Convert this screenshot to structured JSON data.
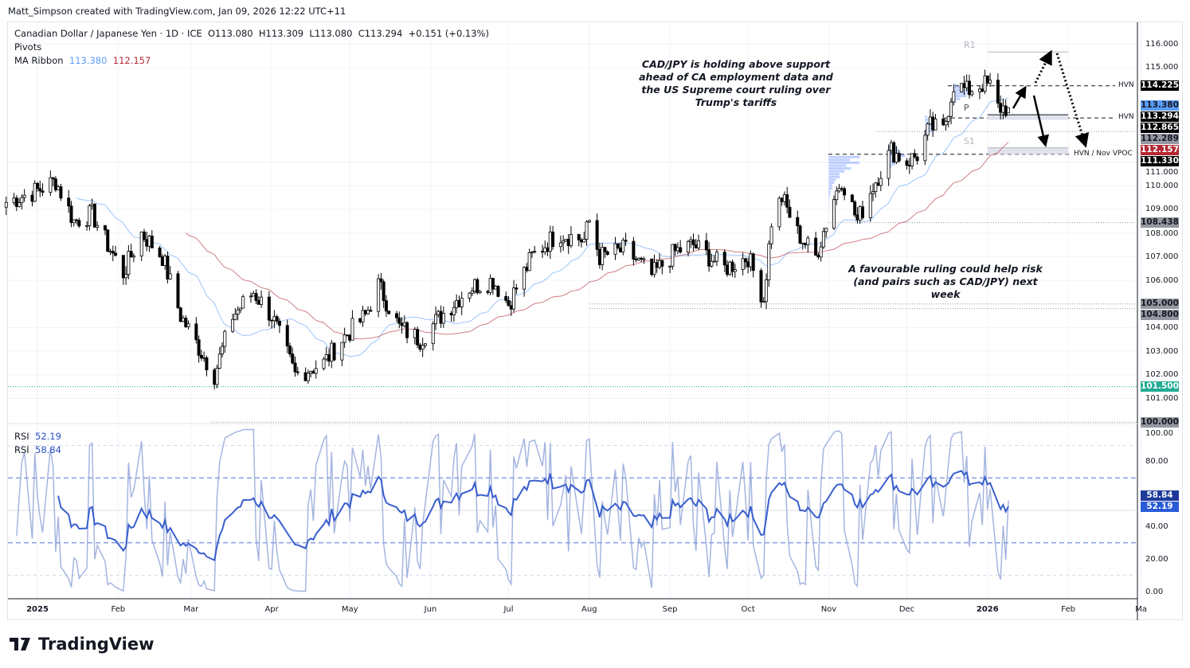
{
  "credit": "Matt_Simpson created with TradingView.com, Jan 09, 2026 12:22 UTC+11",
  "legend": {
    "symbol": "Canadian Dollar / Japanese Yen · 1D · ICE",
    "open": "O113.080",
    "high": "H113.309",
    "low": "L113.080",
    "close": "C113.294",
    "change": "+0.151 (+0.13%)",
    "pivots": "Pivots",
    "ma_label": "MA Ribbon",
    "ma_fast": "113.380",
    "ma_slow": "112.157"
  },
  "rsi_legend": [
    {
      "label": "RSI",
      "value": "52.19"
    },
    {
      "label": "RSI",
      "value": "58.84"
    }
  ],
  "annotations": {
    "top": "CAD/JPY is holding above support ahead of CA employment data and the US Supreme court ruling over Trump's tariffs",
    "bottom": "A favourable ruling could help risk (and pairs such as CAD/JPY) next week"
  },
  "levels": [
    {
      "label": "HVN",
      "value": 114.225
    },
    {
      "label": "HVN",
      "value": 112.865
    },
    {
      "label": "HVN / Nov VPOC",
      "value": 111.33
    }
  ],
  "pivots": [
    {
      "label": "R1",
      "value": 115.65
    },
    {
      "label": "P",
      "value": 113.0
    },
    {
      "label": "S1",
      "value": 111.6
    }
  ],
  "price_labels": [
    {
      "text": "114.225",
      "value": 114.225,
      "bg": "#000000",
      "fg": "#ffffff"
    },
    {
      "text": "113.380",
      "value": 113.38,
      "bg": "#5b9cf6",
      "fg": "#131722"
    },
    {
      "text": "113.294",
      "value": 113.294,
      "bg": "#000000",
      "fg": "#ffffff"
    },
    {
      "text": "112.865",
      "value": 112.865,
      "bg": "#000000",
      "fg": "#ffffff"
    },
    {
      "text": "112.289",
      "value": 112.289,
      "bg": "#9598a1",
      "fg": "#131722"
    },
    {
      "text": "112.157",
      "value": 112.157,
      "bg": "#b22833",
      "fg": "#ffffff"
    },
    {
      "text": "111.330",
      "value": 111.33,
      "bg": "#000000",
      "fg": "#ffffff"
    },
    {
      "text": "108.438",
      "value": 108.438,
      "bg": "#9598a1",
      "fg": "#131722"
    },
    {
      "text": "105.000",
      "value": 105.0,
      "bg": "#9598a1",
      "fg": "#131722"
    },
    {
      "text": "104.800",
      "value": 104.8,
      "bg": "#9598a1",
      "fg": "#131722"
    },
    {
      "text": "101.500",
      "value": 101.5,
      "bg": "#22ab94",
      "fg": "#ffffff"
    },
    {
      "text": "100.000",
      "value": 100.0,
      "bg": "#9598a1",
      "fg": "#131722"
    },
    {
      "text": "58.84",
      "rsi": 58.84,
      "bg": "#1e3a9a",
      "fg": "#ffffff"
    },
    {
      "text": "52.19",
      "rsi": 52.19,
      "bg": "#2a5bd7",
      "fg": "#ffffff"
    }
  ],
  "logo": "TradingView",
  "chart_data": {
    "type": "candlestick",
    "price_ticks": [
      "116.000",
      "115.000",
      "111.000",
      "110.000",
      "109.000",
      "108.000",
      "107.000",
      "106.000",
      "104.000",
      "103.000",
      "102.000",
      "101.000"
    ],
    "rsi_ticks": [
      "100.00",
      "80.00",
      "40.00",
      "20.00",
      "0.00"
    ],
    "x_ticks": [
      {
        "label": "2025",
        "date": "2025-01-01"
      },
      {
        "label": "Feb",
        "date": "2025-02-01"
      },
      {
        "label": "Mar",
        "date": "2025-03-01"
      },
      {
        "label": "Apr",
        "date": "2025-04-01"
      },
      {
        "label": "May",
        "date": "2025-05-01"
      },
      {
        "label": "Jun",
        "date": "2025-06-01"
      },
      {
        "label": "Jul",
        "date": "2025-07-01"
      },
      {
        "label": "Aug",
        "date": "2025-08-01"
      },
      {
        "label": "Sep",
        "date": "2025-09-01"
      },
      {
        "label": "Oct",
        "date": "2025-10-01"
      },
      {
        "label": "Nov",
        "date": "2025-11-01"
      },
      {
        "label": "Dec",
        "date": "2025-12-01"
      },
      {
        "label": "2026",
        "date": "2026-01-01"
      },
      {
        "label": "Feb",
        "date": "2026-02-01"
      },
      {
        "label": "Ma",
        "date": "2026-03-01"
      }
    ],
    "price_range": [
      100,
      116
    ],
    "rsi_range": [
      0,
      100
    ],
    "close_path": [
      [
        "2024-12-20",
        109.3
      ],
      [
        "2025-01-01",
        109.8
      ],
      [
        "2025-01-08",
        110.2
      ],
      [
        "2025-01-15",
        108.5
      ],
      [
        "2025-01-22",
        108.8
      ],
      [
        "2025-01-28",
        107.5
      ],
      [
        "2025-02-03",
        106.3
      ],
      [
        "2025-02-10",
        108.0
      ],
      [
        "2025-02-18",
        107.0
      ],
      [
        "2025-02-25",
        104.5
      ],
      [
        "2025-03-10",
        102.0
      ],
      [
        "2025-03-17",
        104.5
      ],
      [
        "2025-03-25",
        105.5
      ],
      [
        "2025-04-01",
        104.5
      ],
      [
        "2025-04-10",
        102.0
      ],
      [
        "2025-04-21",
        102.5
      ],
      [
        "2025-04-28",
        103.5
      ],
      [
        "2025-05-07",
        104.5
      ],
      [
        "2025-05-12",
        105.8
      ],
      [
        "2025-05-20",
        104.0
      ],
      [
        "2025-05-28",
        103.5
      ],
      [
        "2025-06-05",
        104.5
      ],
      [
        "2025-06-16",
        105.7
      ],
      [
        "2025-06-25",
        106.0
      ],
      [
        "2025-07-01",
        105.0
      ],
      [
        "2025-07-10",
        107.0
      ],
      [
        "2025-07-20",
        108.0
      ],
      [
        "2025-07-30",
        107.7
      ],
      [
        "2025-08-01",
        108.5
      ],
      [
        "2025-08-05",
        107.0
      ],
      [
        "2025-08-15",
        107.3
      ],
      [
        "2025-08-25",
        106.2
      ],
      [
        "2025-09-03",
        107.2
      ],
      [
        "2025-09-10",
        107.5
      ],
      [
        "2025-09-22",
        106.5
      ],
      [
        "2025-10-01",
        107.0
      ],
      [
        "2025-10-07",
        105.2
      ],
      [
        "2025-10-10",
        108.5
      ],
      [
        "2025-10-14",
        109.5
      ],
      [
        "2025-10-20",
        108.0
      ],
      [
        "2025-10-27",
        107.0
      ],
      [
        "2025-11-03",
        109.5
      ],
      [
        "2025-11-06",
        110.3
      ],
      [
        "2025-11-12",
        108.5
      ],
      [
        "2025-11-18",
        110.0
      ],
      [
        "2025-11-25",
        111.5
      ],
      [
        "2025-12-01",
        111.0
      ],
      [
        "2025-12-05",
        111.3
      ],
      [
        "2025-12-10",
        112.5
      ],
      [
        "2025-12-15",
        112.3
      ],
      [
        "2025-12-19",
        114.3
      ],
      [
        "2025-12-24",
        114.0
      ],
      [
        "2025-12-30",
        114.3
      ],
      [
        "2026-01-02",
        114.2
      ],
      [
        "2026-01-05",
        113.3
      ],
      [
        "2026-01-09",
        113.294
      ]
    ],
    "colors": {
      "up": "#ffffff",
      "down": "#000000",
      "ma_fast": "#5b9cf6",
      "ma_slow": "#b22833",
      "rsi_fast": "#8fa3d8",
      "rsi_slow": "#3a5fcd",
      "volume_profile": "#2962ff"
    }
  }
}
